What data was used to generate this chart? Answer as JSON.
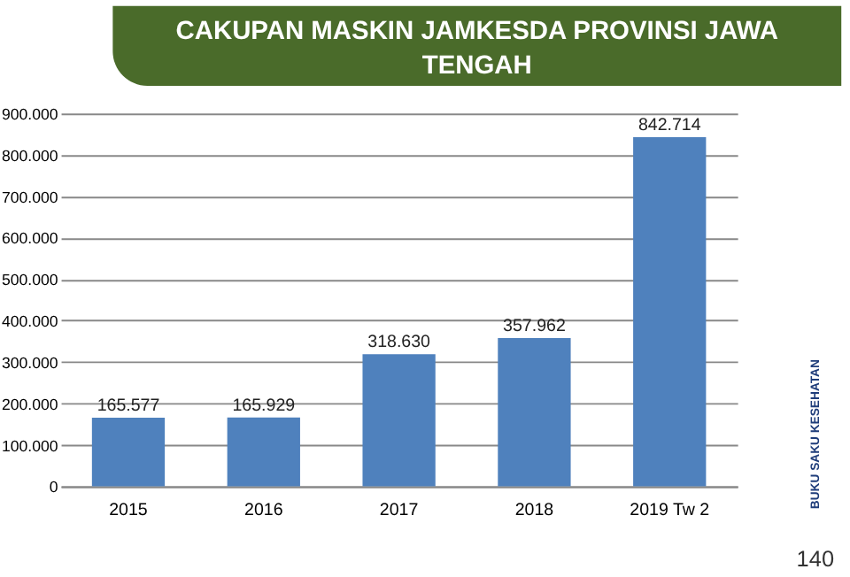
{
  "chart_data": {
    "type": "bar",
    "title": "CAKUPAN MASKIN JAMKESDA PROVINSI JAWA TENGAH",
    "categories": [
      "2015",
      "2016",
      "2017",
      "2018",
      "2019 Tw 2"
    ],
    "values": [
      165577,
      165929,
      318630,
      357962,
      842714
    ],
    "value_labels": [
      "165.577",
      "165.929",
      "318.630",
      "357.962",
      "842.714"
    ],
    "color": "#4f81bd",
    "ylim": [
      0,
      900000
    ],
    "yticks": [
      {
        "value": 0,
        "label": "0"
      },
      {
        "value": 100000,
        "label": "100.000"
      },
      {
        "value": 200000,
        "label": "200.000"
      },
      {
        "value": 300000,
        "label": "300.000"
      },
      {
        "value": 400000,
        "label": "400.000"
      },
      {
        "value": 500000,
        "label": "500.000"
      },
      {
        "value": 600000,
        "label": "600.000"
      },
      {
        "value": 700000,
        "label": "700.000"
      },
      {
        "value": 800000,
        "label": "800.000"
      },
      {
        "value": 900000,
        "label": "900.000"
      }
    ],
    "grid": "y",
    "annotations": [
      "BUKU SAKU KESEHATAN",
      "140"
    ]
  }
}
